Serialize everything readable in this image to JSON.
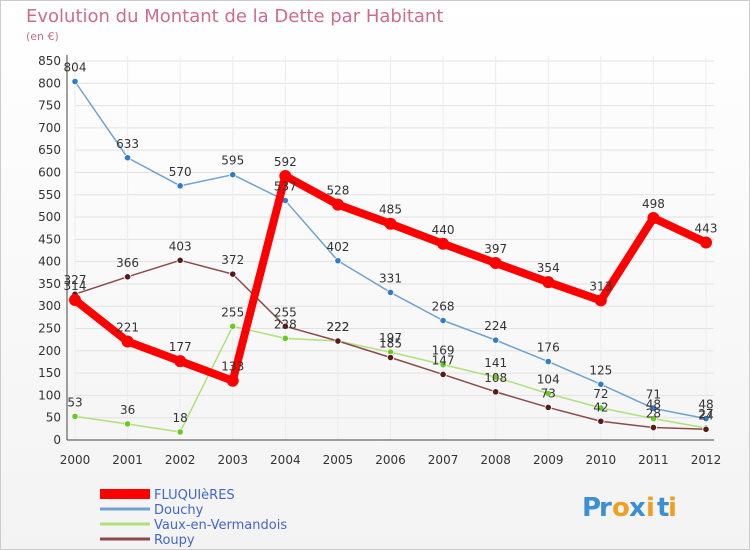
{
  "chart_data": {
    "type": "line",
    "title": "Evolution du Montant de la Dette par Habitant",
    "subtitle": "(en €)",
    "xlabel": "",
    "ylabel": "",
    "ylim": [
      0,
      850
    ],
    "y_ticks": [
      "0",
      "50",
      "100",
      "150",
      "200",
      "250",
      "300",
      "350",
      "400",
      "450",
      "500",
      "550",
      "600",
      "650",
      "700",
      "750",
      "800",
      "850"
    ],
    "categories": [
      "2000",
      "2001",
      "2002",
      "2003",
      "2004",
      "2005",
      "2006",
      "2007",
      "2008",
      "2009",
      "2010",
      "2011",
      "2012"
    ],
    "series": [
      {
        "name": "Douchy",
        "color": "#6ea2d0",
        "point_color": "#2f7cc9",
        "values": [
          804,
          633,
          570,
          595,
          537,
          402,
          331,
          268,
          224,
          176,
          125,
          71,
          48
        ],
        "labels": [
          "804",
          "633",
          "570",
          "595",
          "537",
          "402",
          "331",
          "268",
          "224",
          "176",
          "125",
          "71",
          "48"
        ]
      },
      {
        "name": "Vaux-en-Vermandois",
        "color": "#b0e07a",
        "point_color": "#66cc22",
        "values": [
          53,
          36,
          18,
          255,
          228,
          222,
          197,
          169,
          141,
          104,
          72,
          48,
          27
        ],
        "labels": [
          "53",
          "36",
          "18",
          "255",
          "228",
          "222",
          "197",
          "169",
          "141",
          "104",
          "72",
          "48",
          "27"
        ]
      },
      {
        "name": "Roupy",
        "color": "#8b4a4a",
        "point_color": "#5a1a1a",
        "values": [
          327,
          366,
          403,
          372,
          255,
          222,
          185,
          147,
          108,
          73,
          42,
          28,
          24
        ],
        "labels": [
          "327",
          "366",
          "403",
          "372",
          "255",
          "222",
          "185",
          "147",
          "108",
          "73",
          "42",
          "28",
          "24"
        ]
      },
      {
        "name": "FLUQUIèRES",
        "color": "#ff0000",
        "point_color": "#ff0000",
        "values": [
          314,
          221,
          177,
          133,
          592,
          528,
          485,
          440,
          397,
          354,
          313,
          498,
          443
        ],
        "labels": [
          "314",
          "221",
          "177",
          "133",
          "592",
          "528",
          "485",
          "440",
          "397",
          "354",
          "313",
          "498",
          "443"
        ]
      }
    ],
    "legend": [
      {
        "name": "FLUQUIèRES",
        "color": "#ff0000",
        "text_color": "#4466cc"
      },
      {
        "name": "Douchy",
        "color": "#6ea2d0",
        "text_color": "#4466cc"
      },
      {
        "name": "Vaux-en-Vermandois",
        "color": "#b0e07a",
        "text_color": "#4466cc"
      },
      {
        "name": "Roupy",
        "color": "#8b4a4a",
        "text_color": "#4466cc"
      }
    ],
    "legend_position": "bottom-left",
    "grid": true
  },
  "logo": {
    "letters": [
      "P",
      "r",
      "o",
      "x",
      "i",
      "t",
      "i"
    ],
    "colors": [
      "#3b8fd4",
      "#3b8fd4",
      "#f0a020",
      "#3b8fd4",
      "#f0a020",
      "#3b8fd4",
      "#f0a020"
    ]
  }
}
